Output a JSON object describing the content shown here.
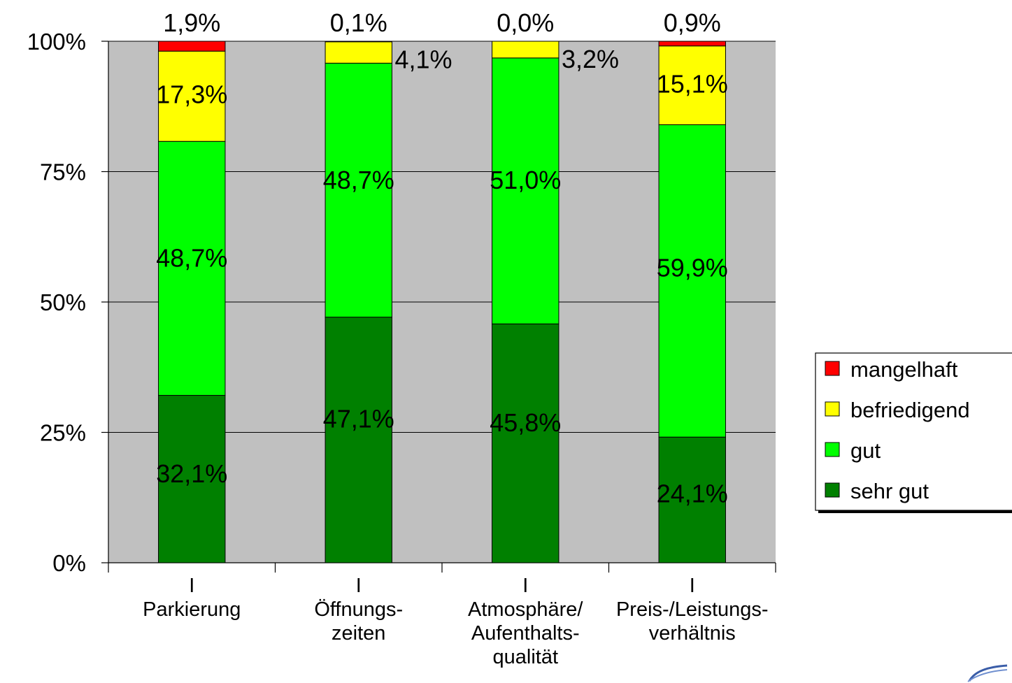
{
  "chart_data": {
    "type": "bar",
    "stacked": true,
    "normalized": true,
    "categories": [
      [
        "Parkierung"
      ],
      [
        "Öffnungs-",
        "zeiten"
      ],
      [
        "Atmosphäre/",
        "Aufenthalts-",
        "qualität"
      ],
      [
        "Preis-/Leistungs-",
        "verhältnis"
      ]
    ],
    "category_marks": [
      "I",
      "I",
      "I",
      "I"
    ],
    "series": [
      {
        "name": "sehr gut",
        "color": "#008000",
        "values": [
          32.1,
          47.1,
          45.8,
          24.1
        ],
        "labels": [
          "32,1%",
          "47,1%",
          "45,8%",
          "24,1%"
        ]
      },
      {
        "name": "gut",
        "color": "#00ff00",
        "values": [
          48.7,
          48.7,
          51.0,
          59.9
        ],
        "labels": [
          "48,7%",
          "48,7%",
          "51,0%",
          "59,9%"
        ]
      },
      {
        "name": "befriedigend",
        "color": "#ffff00",
        "values": [
          17.3,
          4.1,
          3.2,
          15.1
        ],
        "labels": [
          "17,3%",
          "4,1%",
          "3,2%",
          "15,1%"
        ]
      },
      {
        "name": "mangelhaft",
        "color": "#ff0000",
        "values": [
          1.9,
          0.1,
          0.0,
          0.9
        ],
        "labels": [
          "1,9%",
          "0,1%",
          "0,0%",
          "0,9%"
        ]
      }
    ],
    "y_ticks": [
      "0%",
      "25%",
      "50%",
      "75%",
      "100%"
    ],
    "ylim": [
      0,
      100
    ],
    "grid": true,
    "plot_background": "#c0c0c0",
    "legend_position": "right",
    "legend_order": [
      "mangelhaft",
      "befriedigend",
      "gut",
      "sehr gut"
    ]
  }
}
